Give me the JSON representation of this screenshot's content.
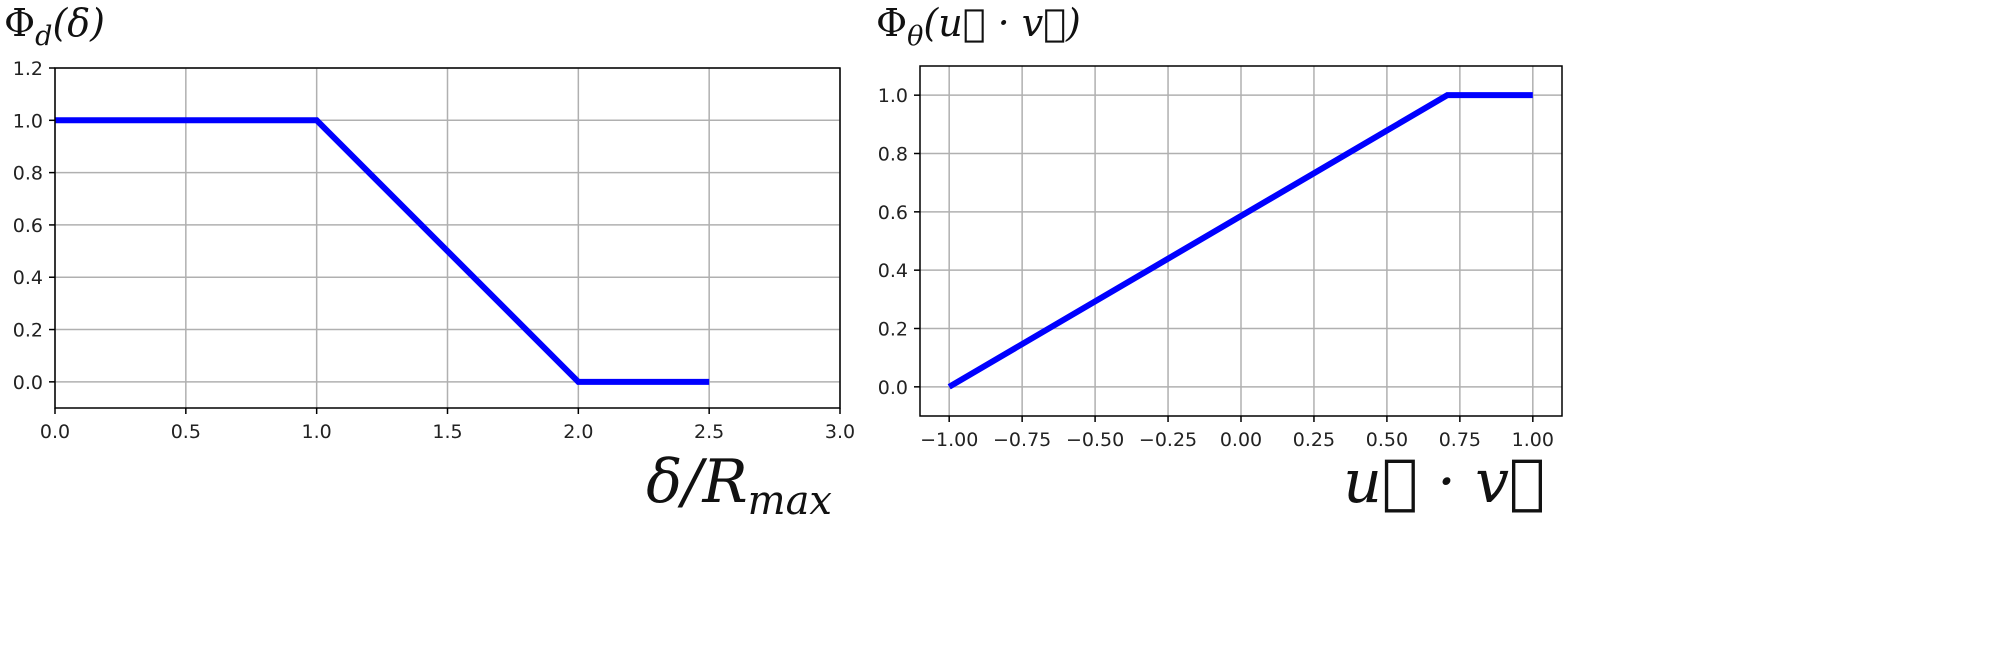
{
  "chart_data": [
    {
      "type": "line",
      "ylabel": "Φ_d(δ)",
      "ylabel_parts": {
        "base": "Φ",
        "sub": "d",
        "arg": "(δ)"
      },
      "xlabel": "δ/R_max",
      "xlabel_parts": {
        "base": "δ/R",
        "sub": "max"
      },
      "xlim": [
        0,
        3
      ],
      "ylim": [
        -0.1,
        1.2
      ],
      "xticks": [
        0,
        0.5,
        1,
        1.5,
        2,
        2.5,
        3
      ],
      "xtick_labels": [
        "0.0",
        "0.5",
        "1.0",
        "1.5",
        "2.0",
        "2.5",
        "3.0"
      ],
      "yticks": [
        0,
        0.2,
        0.4,
        0.6,
        0.8,
        1.0,
        1.2
      ],
      "ytick_labels": [
        "0.0",
        "0.2",
        "0.4",
        "0.6",
        "0.8",
        "1.0",
        "1.2"
      ],
      "grid": true,
      "color": "#0000ff",
      "series": [
        {
          "x": [
            0,
            1,
            2,
            2.5
          ],
          "y": [
            1,
            1,
            0,
            0
          ]
        }
      ]
    },
    {
      "type": "line",
      "ylabel": "Φ_θ(u⃗ · v⃗)",
      "ylabel_parts": {
        "base": "Φ",
        "sub": "θ",
        "arg": "(u⃗ · v⃗)"
      },
      "xlabel": "u⃗ · v⃗",
      "xlim": [
        -1.1,
        1.1
      ],
      "ylim": [
        -0.1,
        1.1
      ],
      "xticks": [
        -1,
        -0.75,
        -0.5,
        -0.25,
        0,
        0.25,
        0.5,
        0.75,
        1
      ],
      "xtick_labels": [
        "−1.00",
        "−0.75",
        "−0.50",
        "−0.25",
        "0.00",
        "0.25",
        "0.50",
        "0.75",
        "1.00"
      ],
      "yticks": [
        0,
        0.2,
        0.4,
        0.6,
        0.8,
        1.0
      ],
      "ytick_labels": [
        "0.0",
        "0.2",
        "0.4",
        "0.6",
        "0.8",
        "1.0"
      ],
      "grid": true,
      "color": "#0000ff",
      "series": [
        {
          "x": [
            -1,
            0.707,
            1
          ],
          "y": [
            0,
            1,
            1
          ]
        }
      ]
    }
  ]
}
